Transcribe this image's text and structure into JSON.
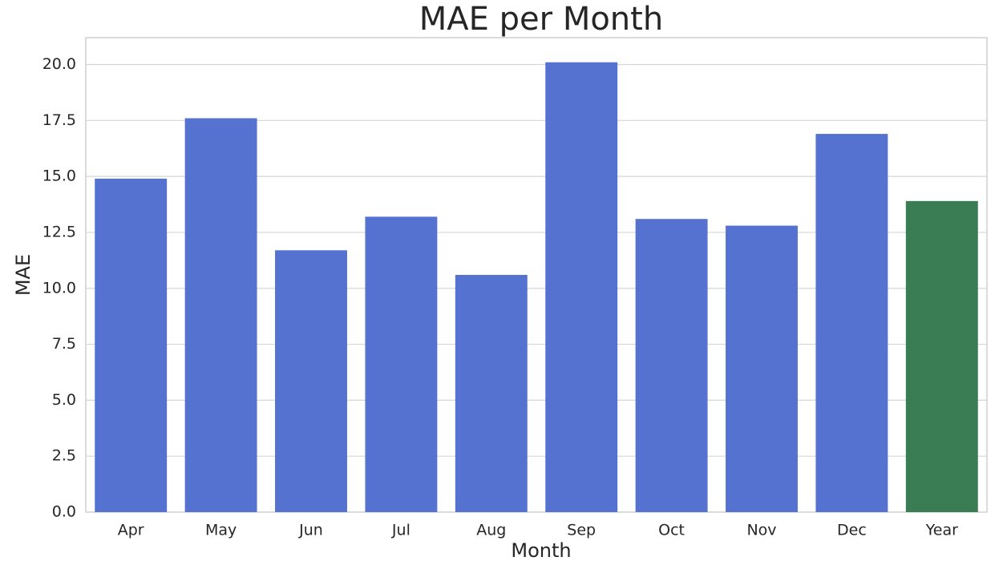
{
  "chart_data": {
    "type": "bar",
    "title": "MAE per Month",
    "x_label": "Month",
    "y_label": "MAE",
    "categories": [
      "Apr",
      "May",
      "Jun",
      "Jul",
      "Aug",
      "Sep",
      "Oct",
      "Nov",
      "Dec",
      "Year"
    ],
    "values": [
      14.9,
      17.6,
      11.7,
      13.2,
      10.6,
      20.1,
      13.1,
      12.8,
      16.9,
      13.9
    ],
    "colors": [
      "#5572d0",
      "#5572d0",
      "#5572d0",
      "#5572d0",
      "#5572d0",
      "#5572d0",
      "#5572d0",
      "#5572d0",
      "#5572d0",
      "#3a7d55"
    ],
    "ylim": [
      0,
      21.2
    ],
    "yticks": [
      {
        "value": 0,
        "label": "0.0"
      },
      2.5,
      {
        "value": 5,
        "label": "5.0"
      },
      7.5,
      {
        "value": 10,
        "label": "10.0"
      },
      12.5,
      {
        "value": 15,
        "label": "15.0"
      },
      17.5,
      {
        "value": 20,
        "label": "20.0"
      }
    ],
    "grid": true
  }
}
